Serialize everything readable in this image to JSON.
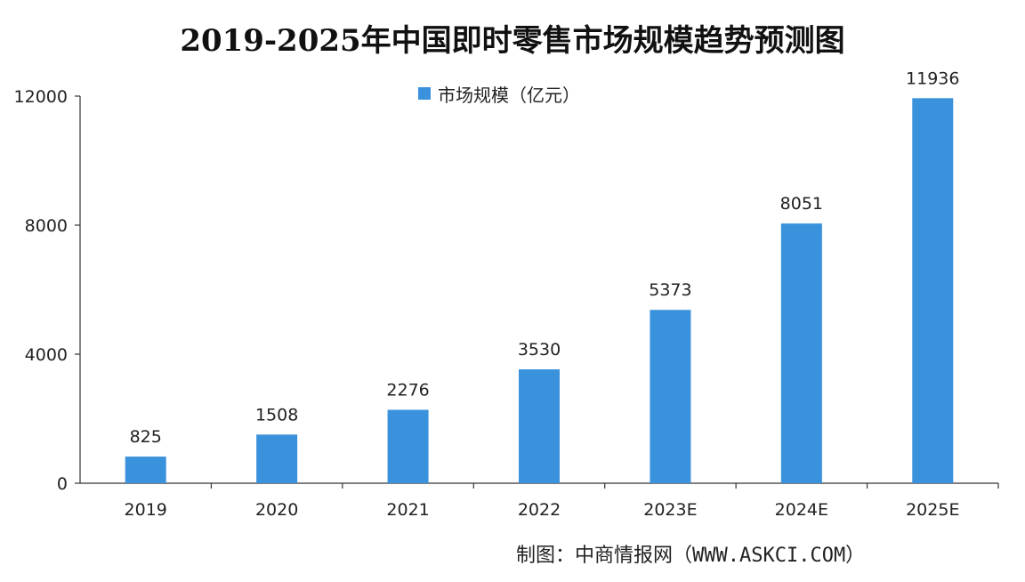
{
  "chart_data": {
    "type": "bar",
    "title": "2019-2025年中国即时零售市场规模趋势预测图",
    "categories": [
      "2019",
      "2020",
      "2021",
      "2022",
      "2023E",
      "2024E",
      "2025E"
    ],
    "series": [
      {
        "name": "市场规模（亿元）",
        "values": [
          825,
          1508,
          2276,
          3530,
          5373,
          8051,
          11936
        ]
      }
    ],
    "data_labels": [
      "825",
      "1508",
      "2276",
      "3530",
      "5373",
      "8051",
      "11936"
    ],
    "ylim": [
      0,
      12000
    ],
    "yticks": [
      0,
      4000,
      8000,
      12000
    ],
    "ytick_labels": [
      "0",
      "4000",
      "8000",
      "12000"
    ],
    "legend_position": "top-center",
    "grid": false,
    "bar_color": "#3a92dd"
  },
  "source_text": "制图：中商情报网（WWW.ASKCI.COM）"
}
